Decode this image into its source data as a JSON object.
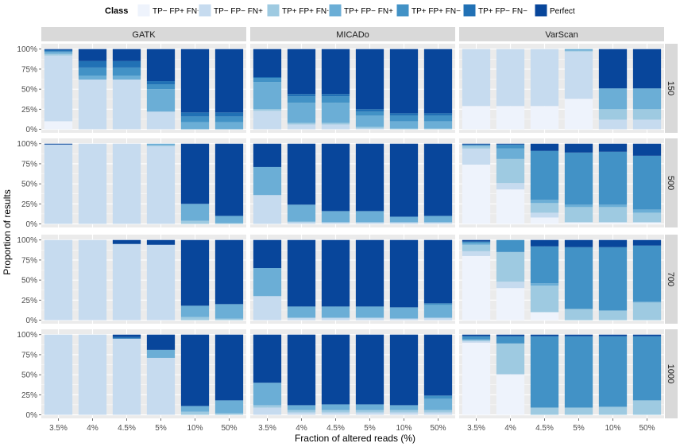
{
  "chart_data": {
    "type": "stacked-bar-facet",
    "xlabel": "Fraction of altered reads (%)",
    "ylabel": "Proportion of results",
    "ylim": [
      0,
      1
    ],
    "y_ticks": [
      "0%",
      "25%",
      "50%",
      "75%",
      "100%"
    ],
    "categories": [
      "3.5%",
      "4%",
      "4.5%",
      "5%",
      "10%",
      "50%"
    ],
    "columns": [
      "GATK",
      "MICADo",
      "VarScan"
    ],
    "rows": [
      "150",
      "500",
      "700",
      "1000"
    ],
    "legend": {
      "title": "Class",
      "classes": [
        {
          "name": "TP− FP+ FN+",
          "color": "#eef3fc"
        },
        {
          "name": "TP− FP− FN+",
          "color": "#c6dbef"
        },
        {
          "name": "TP+ FP+ FN+",
          "color": "#9ecae1"
        },
        {
          "name": "TP+ FP− FN+",
          "color": "#6baed6"
        },
        {
          "name": "TP+ FP+ FN−",
          "color": "#4292c6"
        },
        {
          "name": "TP+ FP− FN−",
          "color": "#2171b5"
        },
        {
          "name": "Perfect",
          "color": "#08469b"
        }
      ]
    },
    "panels": [
      [
        [
          [
            0.1,
            0.82,
            0.02,
            0.03,
            0,
            0.02,
            0.01
          ],
          [
            0,
            0.62,
            0,
            0.05,
            0.1,
            0.08,
            0.15
          ],
          [
            0,
            0.62,
            0,
            0.05,
            0.1,
            0.08,
            0.15
          ],
          [
            0,
            0.22,
            0,
            0.28,
            0.06,
            0.04,
            0.4
          ],
          [
            0,
            0,
            0,
            0.09,
            0.07,
            0.05,
            0.79
          ],
          [
            0,
            0,
            0,
            0.09,
            0.07,
            0.05,
            0.79
          ]
        ],
        [
          [
            0,
            0.99,
            0,
            0,
            0,
            0,
            0.01
          ],
          [
            0,
            1,
            0,
            0,
            0,
            0,
            0
          ],
          [
            0,
            1,
            0,
            0,
            0,
            0,
            0
          ],
          [
            0,
            0.97,
            0.01,
            0.02,
            0,
            0,
            0
          ],
          [
            0,
            0,
            0.04,
            0.21,
            0,
            0,
            0.75
          ],
          [
            0,
            0,
            0.01,
            0.09,
            0,
            0,
            0.9
          ]
        ],
        [
          [
            0,
            1,
            0,
            0,
            0,
            0,
            0
          ],
          [
            0,
            1,
            0,
            0,
            0,
            0,
            0
          ],
          [
            0,
            0.95,
            0,
            0,
            0,
            0,
            0.05
          ],
          [
            0,
            0.94,
            0,
            0,
            0,
            0,
            0.06
          ],
          [
            0,
            0,
            0.04,
            0.14,
            0,
            0,
            0.82
          ],
          [
            0,
            0,
            0.02,
            0.18,
            0,
            0,
            0.8
          ]
        ],
        [
          [
            0,
            1,
            0,
            0,
            0,
            0,
            0
          ],
          [
            0,
            1,
            0,
            0,
            0,
            0,
            0
          ],
          [
            0,
            0.95,
            0,
            0,
            0,
            0.02,
            0.03
          ],
          [
            0,
            0.71,
            0,
            0.1,
            0,
            0,
            0.19
          ],
          [
            0,
            0,
            0.04,
            0.07,
            0,
            0,
            0.89
          ],
          [
            0,
            0,
            0.02,
            0.16,
            0,
            0,
            0.82
          ]
        ]
      ],
      [
        [
          [
            0,
            0.23,
            0.02,
            0.34,
            0.05,
            0.01,
            0.35
          ],
          [
            0,
            0.06,
            0.02,
            0.25,
            0.08,
            0.03,
            0.56
          ],
          [
            0,
            0.06,
            0.02,
            0.25,
            0.08,
            0.03,
            0.56
          ],
          [
            0,
            0.01,
            0.02,
            0.14,
            0.05,
            0.03,
            0.75
          ],
          [
            0,
            0,
            0.01,
            0.09,
            0.07,
            0.03,
            0.8
          ],
          [
            0,
            0,
            0.01,
            0.09,
            0.07,
            0.03,
            0.8
          ]
        ],
        [
          [
            0,
            0.36,
            0,
            0.35,
            0,
            0,
            0.29
          ],
          [
            0,
            0.02,
            0.01,
            0.21,
            0,
            0,
            0.76
          ],
          [
            0,
            0.02,
            0,
            0.14,
            0,
            0,
            0.84
          ],
          [
            0,
            0.02,
            0,
            0.14,
            0,
            0,
            0.84
          ],
          [
            0,
            0.02,
            0,
            0.07,
            0,
            0,
            0.91
          ],
          [
            0,
            0.02,
            0,
            0.08,
            0,
            0,
            0.9
          ]
        ],
        [
          [
            0,
            0.3,
            0,
            0.35,
            0,
            0,
            0.35
          ],
          [
            0,
            0.03,
            0,
            0.14,
            0,
            0,
            0.83
          ],
          [
            0,
            0.03,
            0,
            0.14,
            0,
            0,
            0.83
          ],
          [
            0,
            0.03,
            0,
            0.14,
            0,
            0,
            0.83
          ],
          [
            0,
            0.02,
            0,
            0.14,
            0,
            0,
            0.84
          ],
          [
            0,
            0.03,
            0,
            0.16,
            0.02,
            0,
            0.79
          ]
        ],
        [
          [
            0,
            0.09,
            0.03,
            0.28,
            0,
            0,
            0.6
          ],
          [
            0,
            0.03,
            0.03,
            0.06,
            0,
            0,
            0.88
          ],
          [
            0,
            0.03,
            0.03,
            0.07,
            0,
            0,
            0.87
          ],
          [
            0,
            0.03,
            0.03,
            0.07,
            0,
            0,
            0.87
          ],
          [
            0,
            0.03,
            0.03,
            0.06,
            0,
            0,
            0.88
          ],
          [
            0,
            0.03,
            0.03,
            0.14,
            0.04,
            0,
            0.76
          ]
        ]
      ],
      [
        [
          [
            0.29,
            0.71,
            0,
            0,
            0,
            0,
            0
          ],
          [
            0.29,
            0.71,
            0,
            0,
            0,
            0,
            0
          ],
          [
            0.29,
            0.71,
            0,
            0,
            0,
            0,
            0
          ],
          [
            0.38,
            0.59,
            0.01,
            0.02,
            0,
            0,
            0
          ],
          [
            0,
            0.12,
            0.13,
            0.26,
            0,
            0,
            0.49
          ],
          [
            0,
            0.12,
            0.13,
            0.26,
            0,
            0,
            0.49
          ]
        ],
        [
          [
            0.74,
            0.2,
            0.03,
            0.01,
            0.01,
            0,
            0.01
          ],
          [
            0.43,
            0.08,
            0.3,
            0.13,
            0.05,
            0,
            0.01
          ],
          [
            0.08,
            0.06,
            0.12,
            0.04,
            0.61,
            0,
            0.09
          ],
          [
            0.02,
            0,
            0.19,
            0.03,
            0.65,
            0,
            0.11
          ],
          [
            0.02,
            0,
            0.19,
            0.03,
            0.66,
            0,
            0.1
          ],
          [
            0.02,
            0,
            0.12,
            0.04,
            0.67,
            0,
            0.15
          ]
        ],
        [
          [
            0.8,
            0.06,
            0.08,
            0.02,
            0.02,
            0,
            0.02
          ],
          [
            0.4,
            0.08,
            0.37,
            0,
            0.15,
            0,
            0
          ],
          [
            0.1,
            0,
            0.33,
            0.03,
            0.46,
            0,
            0.08
          ],
          [
            0,
            0,
            0.14,
            0,
            0.77,
            0,
            0.09
          ],
          [
            0,
            0,
            0.12,
            0,
            0.79,
            0,
            0.09
          ],
          [
            0,
            0,
            0.22,
            0.01,
            0.7,
            0,
            0.07
          ]
        ],
        [
          [
            0.9,
            0.02,
            0.01,
            0.01,
            0.04,
            0,
            0.02
          ],
          [
            0.5,
            0.01,
            0.38,
            0,
            0.09,
            0,
            0.02
          ],
          [
            0,
            0,
            0.09,
            0,
            0.89,
            0,
            0.02
          ],
          [
            0,
            0,
            0.09,
            0,
            0.89,
            0,
            0.02
          ],
          [
            0,
            0,
            0.1,
            0,
            0.88,
            0,
            0.02
          ],
          [
            0,
            0,
            0.18,
            0,
            0.8,
            0,
            0.02
          ]
        ]
      ]
    ]
  }
}
